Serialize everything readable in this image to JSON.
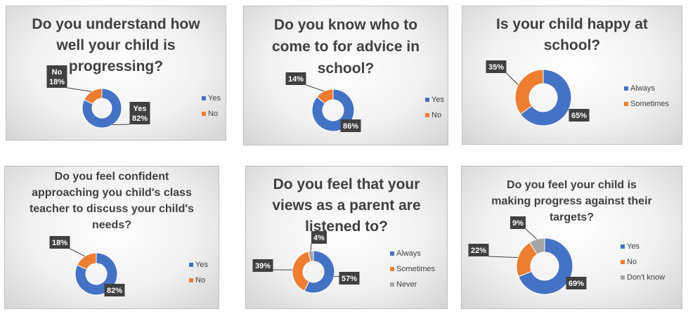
{
  "colors": {
    "blue": "#4472c4",
    "orange": "#ed7d31",
    "gray": "#a5a5a5",
    "label_bg": "#404040"
  },
  "chart_data": [
    {
      "type": "pie",
      "title_lines": [
        "Do you understand how",
        "well your child is",
        "progressing?"
      ],
      "legend_position": "right",
      "slices": [
        {
          "name": "Yes",
          "value": 82,
          "label": "Yes\n82%",
          "color": "#4472c4"
        },
        {
          "name": "No",
          "value": 18,
          "label": "No\n18%",
          "color": "#ed7d31"
        }
      ]
    },
    {
      "type": "pie",
      "title_lines": [
        "Do you know who to",
        "come to for advice in",
        "school?"
      ],
      "legend_position": "right",
      "slices": [
        {
          "name": "Yes",
          "value": 86,
          "label": "86%",
          "color": "#4472c4"
        },
        {
          "name": "No",
          "value": 14,
          "label": "14%",
          "color": "#ed7d31"
        }
      ]
    },
    {
      "type": "pie",
      "title_lines": [
        "Is your child happy at",
        "school?"
      ],
      "legend_position": "right",
      "slices": [
        {
          "name": "Always",
          "value": 65,
          "label": "65%",
          "color": "#4472c4"
        },
        {
          "name": "Sometimes",
          "value": 35,
          "label": "35%",
          "color": "#ed7d31"
        }
      ]
    },
    {
      "type": "pie",
      "title_lines": [
        "Do you feel confident",
        "approaching you child's class",
        "teacher to discuss your child's",
        "needs?"
      ],
      "legend_position": "right",
      "slices": [
        {
          "name": "Yes",
          "value": 82,
          "label": "82%",
          "color": "#4472c4"
        },
        {
          "name": "No",
          "value": 18,
          "label": "18%",
          "color": "#ed7d31"
        }
      ]
    },
    {
      "type": "pie",
      "title_lines": [
        "Do you feel that your",
        "views as a parent are",
        "listened to?"
      ],
      "legend_position": "right",
      "slices": [
        {
          "name": "Always",
          "value": 57,
          "label": "57%",
          "color": "#4472c4"
        },
        {
          "name": "Sometimes",
          "value": 39,
          "label": "39%",
          "color": "#ed7d31"
        },
        {
          "name": "Never",
          "value": 4,
          "label": "4%",
          "color": "#a5a5a5"
        }
      ]
    },
    {
      "type": "pie",
      "title_lines": [
        "Do you feel your child is",
        "making progress against their",
        "targets?"
      ],
      "legend_position": "right",
      "slices": [
        {
          "name": "Yes",
          "value": 69,
          "label": "69%",
          "color": "#4472c4"
        },
        {
          "name": "No",
          "value": 22,
          "label": "22%",
          "color": "#ed7d31"
        },
        {
          "name": "Don't know",
          "value": 9,
          "label": "9%",
          "color": "#a5a5a5"
        }
      ]
    }
  ]
}
